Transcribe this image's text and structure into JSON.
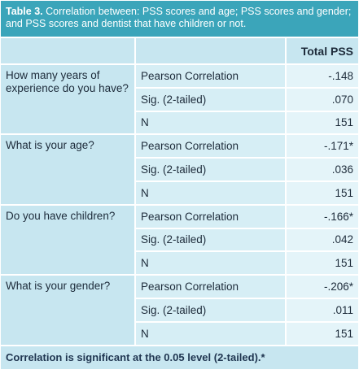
{
  "header": {
    "label": "Table 3.",
    "title": "Correlation between: PSS scores and age; PSS scores and gender; and PSS scores and dentist that have children or not."
  },
  "table": {
    "column_header": "Total PSS",
    "groups": [
      {
        "question": "How many years of experience do you have?",
        "rows": [
          [
            "Pearson Correlation",
            "-.148"
          ],
          [
            "Sig. (2-tailed)",
            ".070"
          ],
          [
            "N",
            "151"
          ]
        ]
      },
      {
        "question": "What is your age?",
        "rows": [
          [
            "Pearson Correlation",
            "-.171*"
          ],
          [
            "Sig. (2-tailed)",
            ".036"
          ],
          [
            "N",
            "151"
          ]
        ]
      },
      {
        "question": "Do you have children?",
        "rows": [
          [
            "Pearson Correlation",
            "-.166*"
          ],
          [
            "Sig. (2-tailed)",
            ".042"
          ],
          [
            "N",
            "151"
          ]
        ]
      },
      {
        "question": "What is your gender?",
        "rows": [
          [
            "Pearson Correlation",
            "-.206*"
          ],
          [
            "Sig. (2-tailed)",
            ".011"
          ],
          [
            "N",
            "151"
          ]
        ]
      }
    ],
    "footnote": "Correlation is significant at the 0.05 level (2-tailed).*"
  }
}
